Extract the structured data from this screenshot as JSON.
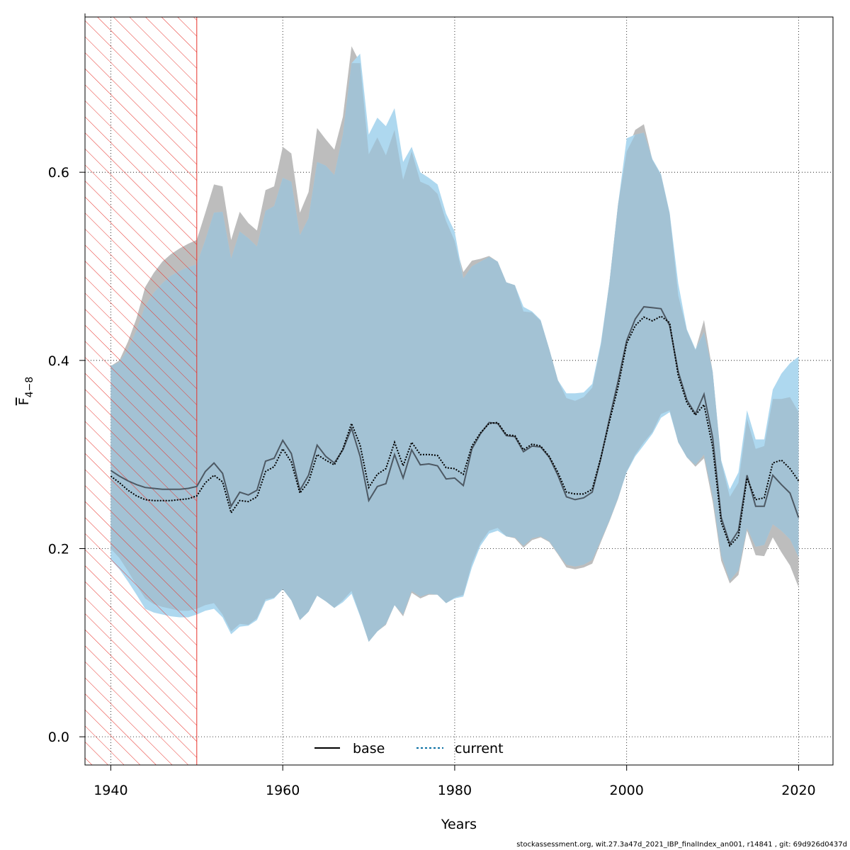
{
  "chart_data": {
    "type": "line",
    "xlabel": "Years",
    "ylabel_main": "F",
    "ylabel_sub": "4−8",
    "xlim": [
      1937,
      2024
    ],
    "ylim": [
      -0.03,
      0.765
    ],
    "xticks": [
      1940,
      1960,
      1980,
      2000,
      2020
    ],
    "yticks": [
      0.0,
      0.2,
      0.4,
      0.6
    ],
    "ytick_labels": [
      "0.0",
      "0.2",
      "0.4",
      "0.6"
    ],
    "grid": true,
    "legend_position": "bottom-center",
    "hatched_region": {
      "x_start": 1937,
      "x_end": 1950,
      "color": "#e8332c"
    },
    "colors": {
      "base_band": "#bdbdbd",
      "current_band": "#aed8ef",
      "overlap_band": "#a3c2d4",
      "base_line": "#4d5964",
      "current_line": "#000000"
    },
    "years": [
      1940,
      1941,
      1942,
      1943,
      1944,
      1945,
      1946,
      1947,
      1948,
      1949,
      1950,
      1951,
      1952,
      1953,
      1954,
      1955,
      1956,
      1957,
      1958,
      1959,
      1960,
      1961,
      1962,
      1963,
      1964,
      1965,
      1966,
      1967,
      1968,
      1969,
      1970,
      1971,
      1972,
      1973,
      1974,
      1975,
      1976,
      1977,
      1978,
      1979,
      1980,
      1981,
      1982,
      1983,
      1984,
      1985,
      1986,
      1987,
      1988,
      1989,
      1990,
      1991,
      1992,
      1993,
      1994,
      1995,
      1996,
      1997,
      1998,
      1999,
      2000,
      2001,
      2002,
      2003,
      2004,
      2005,
      2006,
      2007,
      2008,
      2009,
      2010,
      2011,
      2012,
      2013,
      2014,
      2015,
      2016,
      2017,
      2018,
      2019,
      2020
    ],
    "series": [
      {
        "name": "base",
        "style": "solid",
        "values": [
          0.283,
          0.277,
          0.272,
          0.268,
          0.265,
          0.264,
          0.263,
          0.263,
          0.263,
          0.264,
          0.266,
          0.282,
          0.291,
          0.28,
          0.245,
          0.26,
          0.257,
          0.262,
          0.293,
          0.296,
          0.315,
          0.301,
          0.262,
          0.278,
          0.31,
          0.298,
          0.291,
          0.305,
          0.328,
          0.298,
          0.251,
          0.266,
          0.269,
          0.3,
          0.275,
          0.305,
          0.289,
          0.29,
          0.288,
          0.274,
          0.275,
          0.267,
          0.306,
          0.322,
          0.334,
          0.333,
          0.32,
          0.319,
          0.303,
          0.309,
          0.308,
          0.297,
          0.278,
          0.255,
          0.252,
          0.254,
          0.26,
          0.296,
          0.338,
          0.378,
          0.421,
          0.444,
          0.457,
          0.456,
          0.455,
          0.437,
          0.388,
          0.358,
          0.343,
          0.364,
          0.318,
          0.233,
          0.205,
          0.219,
          0.278,
          0.245,
          0.245,
          0.278,
          0.268,
          0.259,
          0.233
        ],
        "lower": [
          0.2,
          0.19,
          0.176,
          0.161,
          0.147,
          0.141,
          0.138,
          0.136,
          0.134,
          0.134,
          0.136,
          0.14,
          0.142,
          0.13,
          0.112,
          0.12,
          0.119,
          0.126,
          0.146,
          0.148,
          0.157,
          0.145,
          0.124,
          0.133,
          0.15,
          0.144,
          0.137,
          0.145,
          0.155,
          0.129,
          0.101,
          0.112,
          0.119,
          0.14,
          0.128,
          0.153,
          0.147,
          0.151,
          0.151,
          0.142,
          0.148,
          0.151,
          0.184,
          0.206,
          0.219,
          0.222,
          0.213,
          0.211,
          0.201,
          0.209,
          0.212,
          0.207,
          0.194,
          0.18,
          0.178,
          0.18,
          0.184,
          0.207,
          0.229,
          0.253,
          0.282,
          0.3,
          0.313,
          0.324,
          0.343,
          0.347,
          0.313,
          0.297,
          0.287,
          0.296,
          0.25,
          0.187,
          0.163,
          0.172,
          0.219,
          0.193,
          0.192,
          0.212,
          0.196,
          0.182,
          0.159
        ],
        "upper": [
          0.394,
          0.4,
          0.42,
          0.445,
          0.478,
          0.493,
          0.505,
          0.513,
          0.519,
          0.524,
          0.528,
          0.557,
          0.587,
          0.585,
          0.528,
          0.558,
          0.546,
          0.538,
          0.581,
          0.585,
          0.627,
          0.62,
          0.557,
          0.579,
          0.647,
          0.635,
          0.624,
          0.659,
          0.734,
          0.716,
          0.619,
          0.637,
          0.618,
          0.645,
          0.592,
          0.622,
          0.59,
          0.586,
          0.577,
          0.548,
          0.527,
          0.494,
          0.506,
          0.508,
          0.511,
          0.505,
          0.483,
          0.48,
          0.452,
          0.451,
          0.442,
          0.412,
          0.379,
          0.36,
          0.357,
          0.361,
          0.371,
          0.416,
          0.483,
          0.566,
          0.622,
          0.645,
          0.651,
          0.613,
          0.597,
          0.556,
          0.469,
          0.432,
          0.411,
          0.443,
          0.388,
          0.292,
          0.255,
          0.27,
          0.338,
          0.306,
          0.309,
          0.359,
          0.359,
          0.361,
          0.345
        ]
      },
      {
        "name": "current",
        "style": "dotted",
        "values": [
          0.277,
          0.27,
          0.262,
          0.256,
          0.252,
          0.251,
          0.251,
          0.251,
          0.252,
          0.253,
          0.256,
          0.27,
          0.278,
          0.271,
          0.238,
          0.251,
          0.25,
          0.255,
          0.282,
          0.287,
          0.306,
          0.292,
          0.259,
          0.271,
          0.3,
          0.294,
          0.289,
          0.306,
          0.333,
          0.31,
          0.265,
          0.279,
          0.285,
          0.313,
          0.288,
          0.313,
          0.3,
          0.3,
          0.299,
          0.286,
          0.285,
          0.279,
          0.309,
          0.323,
          0.333,
          0.334,
          0.321,
          0.32,
          0.305,
          0.311,
          0.309,
          0.298,
          0.281,
          0.26,
          0.258,
          0.258,
          0.263,
          0.297,
          0.335,
          0.372,
          0.418,
          0.437,
          0.446,
          0.442,
          0.447,
          0.44,
          0.384,
          0.355,
          0.342,
          0.353,
          0.308,
          0.228,
          0.203,
          0.213,
          0.275,
          0.252,
          0.254,
          0.291,
          0.294,
          0.285,
          0.272
        ],
        "lower": [
          0.188,
          0.178,
          0.165,
          0.151,
          0.136,
          0.132,
          0.13,
          0.128,
          0.127,
          0.127,
          0.13,
          0.134,
          0.136,
          0.127,
          0.109,
          0.117,
          0.118,
          0.124,
          0.144,
          0.147,
          0.157,
          0.145,
          0.124,
          0.133,
          0.15,
          0.144,
          0.137,
          0.143,
          0.152,
          0.128,
          0.101,
          0.112,
          0.12,
          0.14,
          0.13,
          0.155,
          0.149,
          0.152,
          0.151,
          0.142,
          0.147,
          0.149,
          0.18,
          0.203,
          0.216,
          0.219,
          0.213,
          0.212,
          0.203,
          0.211,
          0.213,
          0.208,
          0.195,
          0.183,
          0.181,
          0.183,
          0.188,
          0.209,
          0.23,
          0.254,
          0.281,
          0.298,
          0.31,
          0.322,
          0.339,
          0.345,
          0.313,
          0.297,
          0.289,
          0.3,
          0.256,
          0.193,
          0.166,
          0.177,
          0.222,
          0.202,
          0.204,
          0.226,
          0.219,
          0.21,
          0.191
        ],
        "upper": [
          0.394,
          0.398,
          0.412,
          0.432,
          0.458,
          0.472,
          0.482,
          0.49,
          0.495,
          0.499,
          0.502,
          0.528,
          0.557,
          0.558,
          0.508,
          0.537,
          0.53,
          0.521,
          0.559,
          0.564,
          0.594,
          0.59,
          0.533,
          0.551,
          0.611,
          0.607,
          0.597,
          0.64,
          0.716,
          0.726,
          0.64,
          0.658,
          0.649,
          0.668,
          0.611,
          0.627,
          0.6,
          0.594,
          0.587,
          0.556,
          0.537,
          0.487,
          0.5,
          0.505,
          0.51,
          0.505,
          0.483,
          0.48,
          0.457,
          0.452,
          0.443,
          0.412,
          0.379,
          0.365,
          0.365,
          0.366,
          0.375,
          0.419,
          0.483,
          0.566,
          0.636,
          0.64,
          0.642,
          0.614,
          0.598,
          0.557,
          0.482,
          0.433,
          0.412,
          0.43,
          0.388,
          0.294,
          0.263,
          0.281,
          0.347,
          0.316,
          0.316,
          0.369,
          0.386,
          0.397,
          0.404
        ]
      }
    ],
    "legend": [
      "base",
      "current"
    ]
  },
  "footer": "stockassessment.org, wit.27.3a47d_2021_IBP_finalIndex_an001, r14841 , git: 69d926d0437d"
}
